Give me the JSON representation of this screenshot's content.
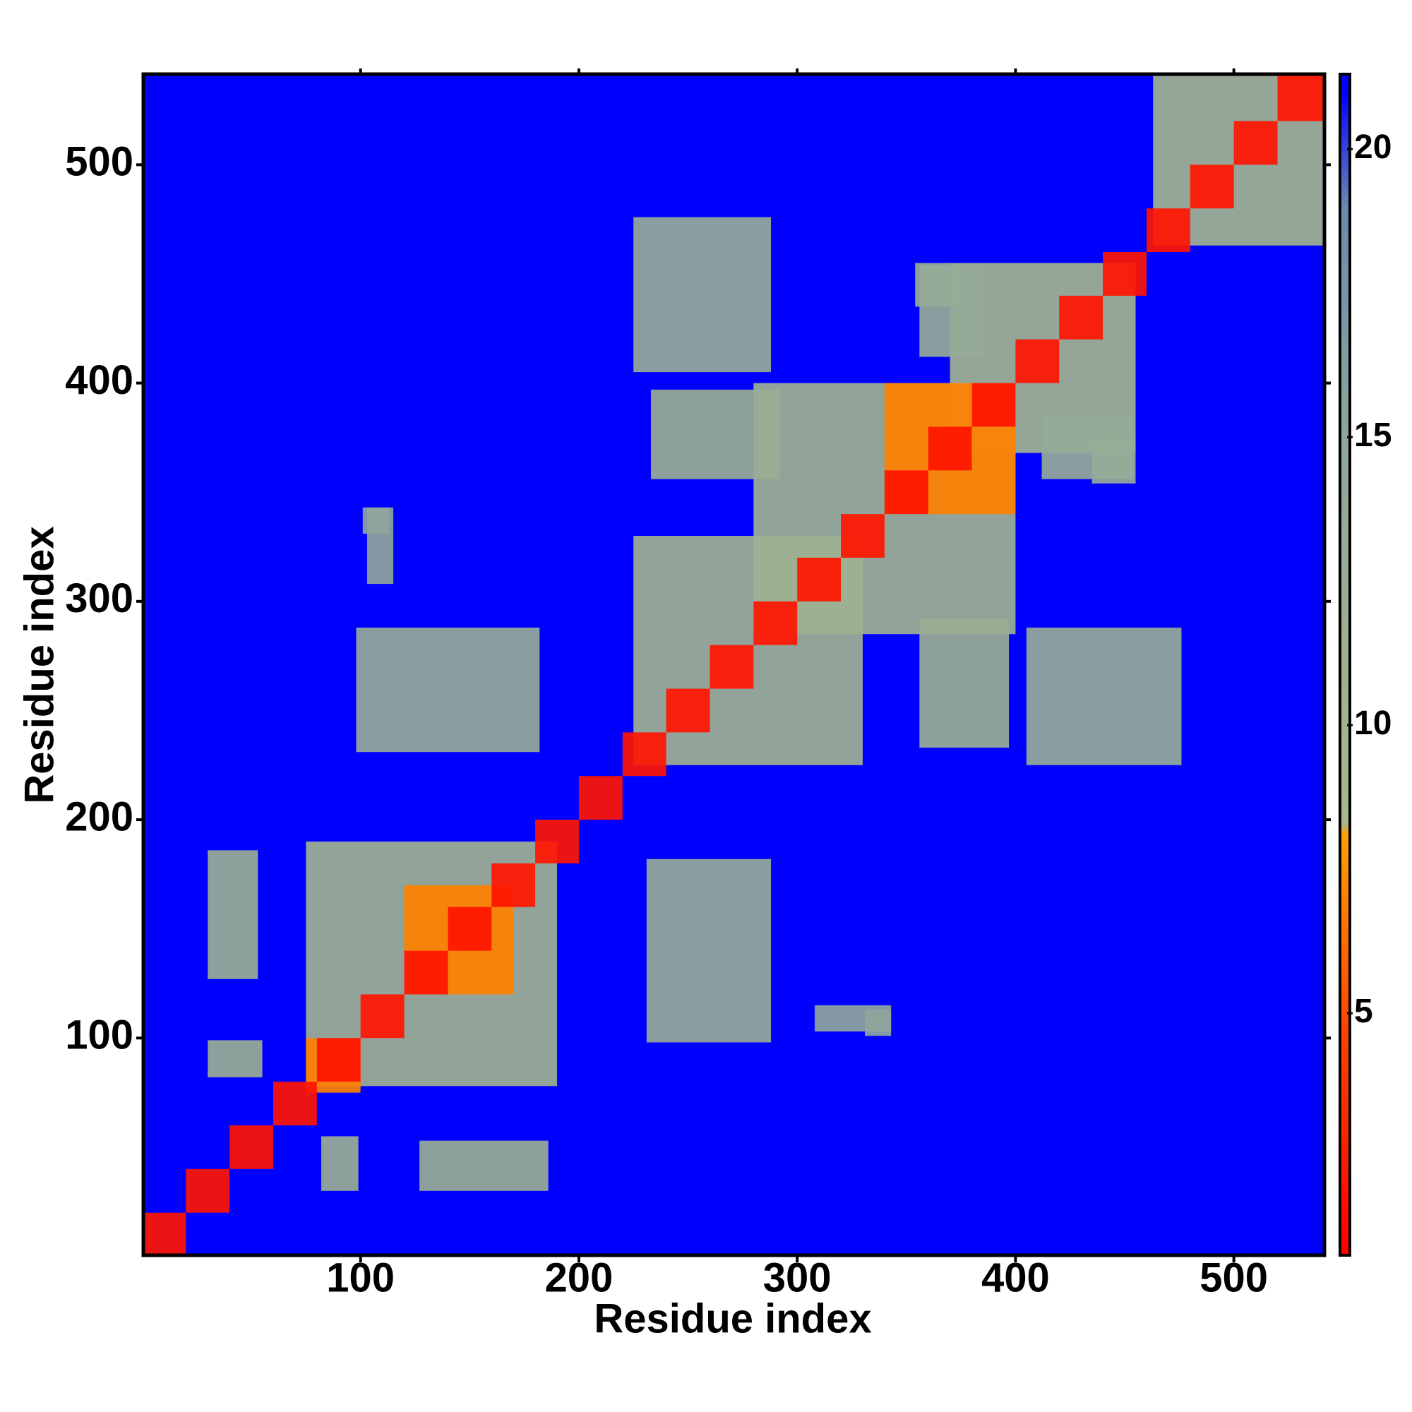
{
  "chart_data": {
    "type": "heatmap",
    "xlabel": "Residue index",
    "ylabel": "Residue index",
    "xlim": [
      0.5,
      541.5
    ],
    "ylim": [
      0.5,
      541.5
    ],
    "xticks": [
      100,
      200,
      300,
      400,
      500
    ],
    "yticks": [
      100,
      200,
      300,
      400,
      500
    ],
    "background_value": 21,
    "clim": [
      0.8,
      21.3
    ],
    "cticks": [
      5,
      10,
      15,
      20
    ],
    "colorscale": [
      {
        "value": 0.8,
        "color": "#ff0000"
      },
      {
        "value": 5,
        "color": "#ff4a00"
      },
      {
        "value": 8.1,
        "color": "#ffa000"
      },
      {
        "value": 8.3,
        "color": "#a8b88a"
      },
      {
        "value": 15,
        "color": "#8fa69c"
      },
      {
        "value": 19,
        "color": "#6a8aae"
      },
      {
        "value": 21,
        "color": "#0000ff"
      },
      {
        "value": 21.3,
        "color": "#0000ff"
      }
    ],
    "x": [
      [
        225,
        330
      ],
      [
        280,
        400
      ],
      [
        370,
        455
      ],
      [
        463,
        541
      ],
      [
        75,
        190
      ],
      [
        30,
        53
      ],
      [
        127,
        186
      ],
      [
        30,
        55
      ],
      [
        82,
        99
      ],
      [
        231,
        288
      ],
      [
        98,
        182
      ],
      [
        308,
        343
      ],
      [
        103,
        115
      ],
      [
        233,
        292
      ],
      [
        356,
        397
      ],
      [
        225,
        288
      ],
      [
        405,
        476
      ],
      [
        354,
        375
      ],
      [
        435,
        455
      ],
      [
        412,
        454
      ],
      [
        356,
        385
      ],
      [
        101,
        113
      ],
      [
        331,
        343
      ],
      [
        120,
        170
      ],
      [
        75,
        100
      ],
      [
        340,
        400
      ],
      [
        0,
        20
      ],
      [
        20,
        40
      ],
      [
        40,
        60
      ],
      [
        60,
        80
      ],
      [
        80,
        100
      ],
      [
        100,
        120
      ],
      [
        120,
        140
      ],
      [
        140,
        160
      ],
      [
        160,
        180
      ],
      [
        180,
        200
      ],
      [
        200,
        220
      ],
      [
        220,
        240
      ],
      [
        240,
        260
      ],
      [
        260,
        280
      ],
      [
        280,
        300
      ],
      [
        300,
        320
      ],
      [
        320,
        340
      ],
      [
        340,
        360
      ],
      [
        360,
        380
      ],
      [
        380,
        400
      ],
      [
        400,
        420
      ],
      [
        420,
        440
      ],
      [
        440,
        460
      ],
      [
        460,
        480
      ],
      [
        480,
        500
      ],
      [
        500,
        520
      ],
      [
        520,
        541
      ]
    ],
    "y": [
      [
        225,
        330
      ],
      [
        285,
        400
      ],
      [
        368,
        455
      ],
      [
        463,
        541
      ],
      [
        78,
        190
      ],
      [
        127,
        186
      ],
      [
        30,
        53
      ],
      [
        82,
        99
      ],
      [
        30,
        55
      ],
      [
        98,
        182
      ],
      [
        231,
        288
      ],
      [
        103,
        115
      ],
      [
        308,
        343
      ],
      [
        356,
        397
      ],
      [
        233,
        292
      ],
      [
        405,
        476
      ],
      [
        225,
        288
      ],
      [
        435,
        455
      ],
      [
        354,
        375
      ],
      [
        356,
        385
      ],
      [
        412,
        454
      ],
      [
        331,
        343
      ],
      [
        101,
        113
      ],
      [
        120,
        170
      ],
      [
        75,
        100
      ],
      [
        340,
        400
      ],
      [
        0,
        20
      ],
      [
        20,
        40
      ],
      [
        40,
        60
      ],
      [
        60,
        80
      ],
      [
        80,
        100
      ],
      [
        100,
        120
      ],
      [
        120,
        140
      ],
      [
        140,
        160
      ],
      [
        160,
        180
      ],
      [
        180,
        200
      ],
      [
        200,
        220
      ],
      [
        220,
        240
      ],
      [
        240,
        260
      ],
      [
        260,
        280
      ],
      [
        280,
        300
      ],
      [
        300,
        320
      ],
      [
        320,
        340
      ],
      [
        340,
        360
      ],
      [
        360,
        380
      ],
      [
        380,
        400
      ],
      [
        400,
        420
      ],
      [
        420,
        440
      ],
      [
        440,
        460
      ],
      [
        460,
        480
      ],
      [
        480,
        500
      ],
      [
        500,
        520
      ],
      [
        520,
        541
      ]
    ],
    "values": [
      11,
      11,
      10,
      10,
      11,
      12,
      12,
      12,
      12,
      13,
      13,
      15,
      15,
      12,
      12,
      13,
      13,
      13,
      13,
      13,
      13,
      15,
      15,
      7,
      7,
      7,
      2,
      2,
      2,
      2,
      2,
      2,
      2,
      2,
      2,
      2,
      2,
      2,
      2,
      2,
      2,
      2,
      2,
      2,
      2,
      2,
      2,
      2,
      2,
      2,
      2,
      2,
      2
    ]
  }
}
